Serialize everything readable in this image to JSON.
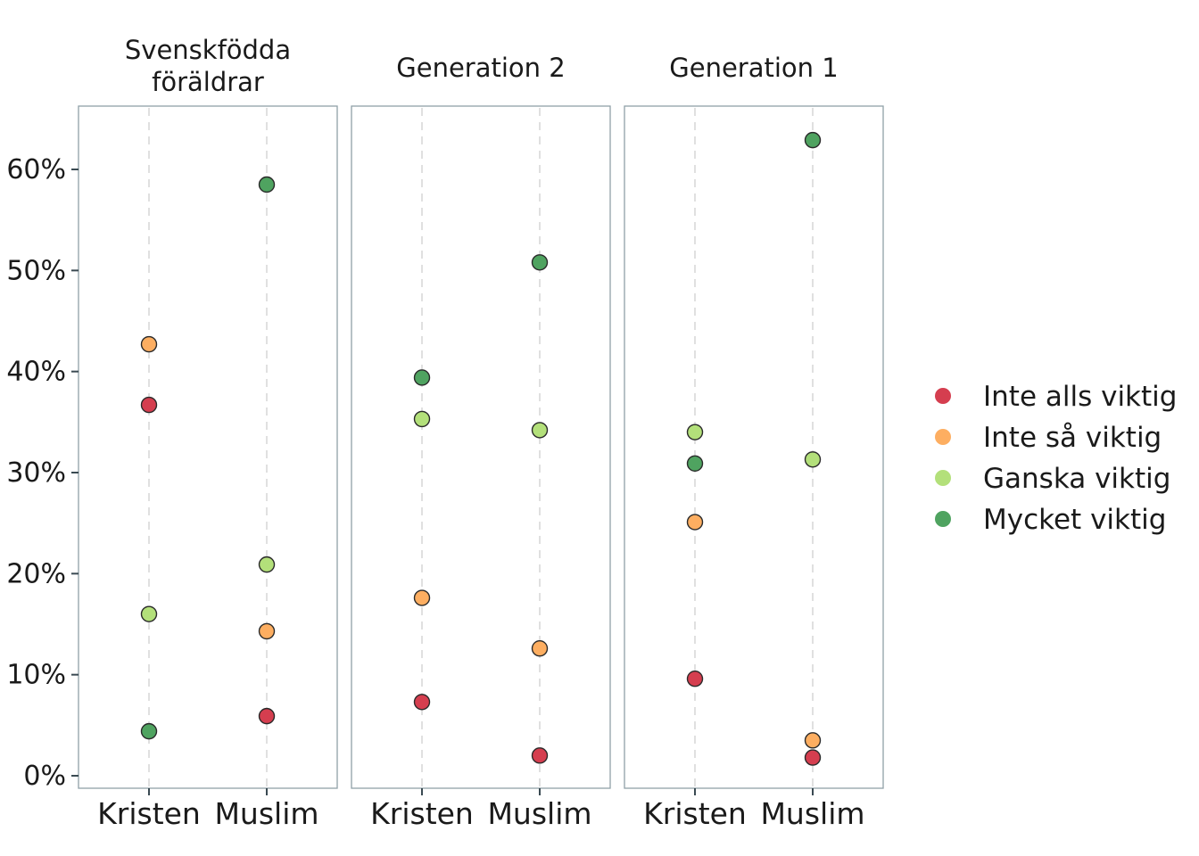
{
  "chart_data": {
    "type": "scatter",
    "panels": [
      {
        "title": "Svenskfödda föräldrar",
        "title_lines": [
          "Svenskfödda",
          "föräldrar"
        ],
        "categories": [
          "Kristen",
          "Muslim"
        ],
        "series": [
          {
            "name": "Inte alls viktig",
            "values": [
              36.7,
              5.9
            ]
          },
          {
            "name": "Inte så viktig",
            "values": [
              42.7,
              14.3
            ]
          },
          {
            "name": "Ganska viktig",
            "values": [
              16.0,
              20.9
            ]
          },
          {
            "name": "Mycket viktig",
            "values": [
              4.4,
              58.5
            ]
          }
        ]
      },
      {
        "title": "Generation 2",
        "title_lines": [
          "Generation 2"
        ],
        "categories": [
          "Kristen",
          "Muslim"
        ],
        "series": [
          {
            "name": "Inte alls viktig",
            "values": [
              7.3,
              2.0
            ]
          },
          {
            "name": "Inte så viktig",
            "values": [
              17.6,
              12.6
            ]
          },
          {
            "name": "Ganska viktig",
            "values": [
              35.3,
              34.2
            ]
          },
          {
            "name": "Mycket viktig",
            "values": [
              39.4,
              50.8
            ]
          }
        ]
      },
      {
        "title": "Generation 1",
        "title_lines": [
          "Generation 1"
        ],
        "categories": [
          "Kristen",
          "Muslim"
        ],
        "series": [
          {
            "name": "Inte alls viktig",
            "values": [
              9.6,
              1.8
            ]
          },
          {
            "name": "Inte så viktig",
            "values": [
              25.1,
              3.5
            ]
          },
          {
            "name": "Ganska viktig",
            "values": [
              34.0,
              31.3
            ]
          },
          {
            "name": "Mycket viktig",
            "values": [
              30.9,
              62.9
            ]
          }
        ]
      }
    ],
    "y_ticks": [
      0,
      10,
      20,
      30,
      40,
      50,
      60
    ],
    "y_tick_labels": [
      "0%",
      "10%",
      "20%",
      "30%",
      "40%",
      "50%",
      "60%"
    ],
    "ylim": [
      -1.2,
      66.2
    ],
    "legend": {
      "position": "right",
      "entries": [
        "Inte alls viktig",
        "Inte så viktig",
        "Ganska viktig",
        "Mycket viktig"
      ]
    },
    "colors": {
      "Inte alls viktig": "#d53e4f",
      "Inte så viktig": "#fdae61",
      "Ganska viktig": "#b3e07a",
      "Mycket viktig": "#4fa360"
    },
    "grid": "vertical dashed lines at categories"
  }
}
